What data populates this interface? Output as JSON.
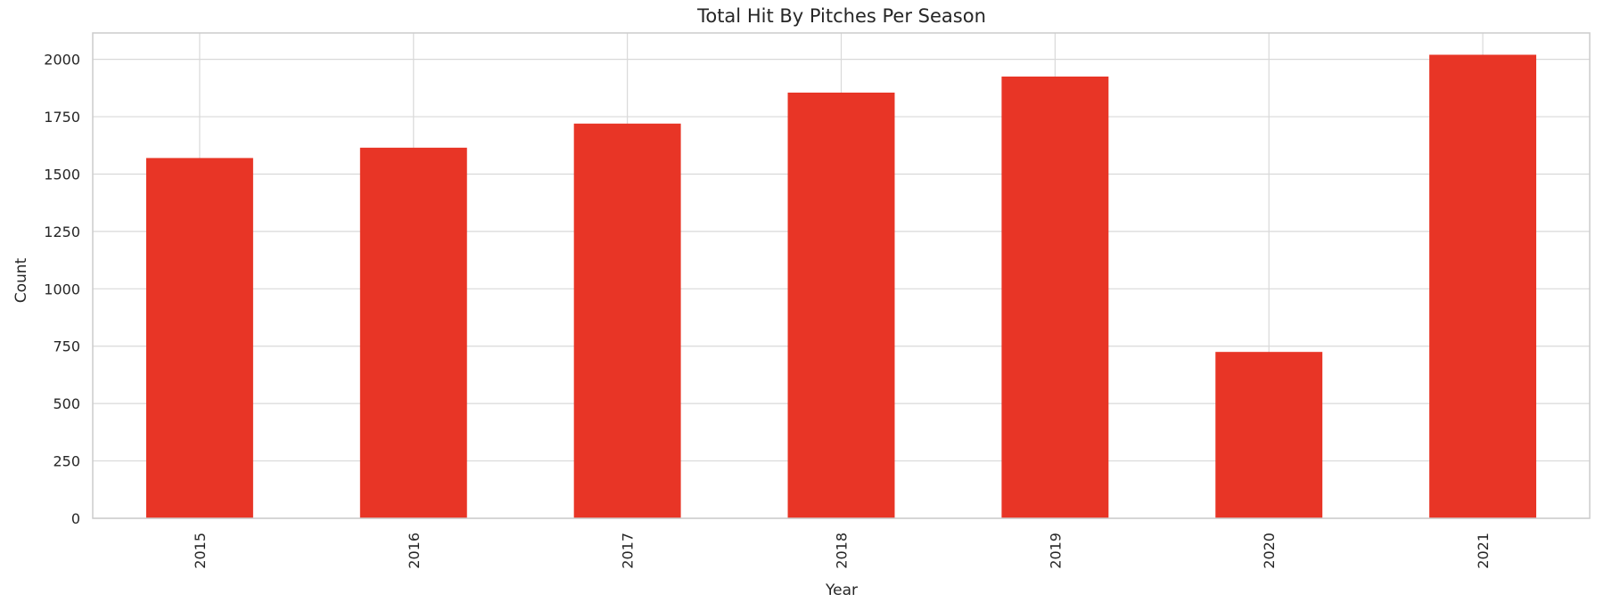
{
  "chart_data": {
    "type": "bar",
    "title": "Total Hit By Pitches Per Season",
    "xlabel": "Year",
    "ylabel": "Count",
    "categories": [
      "2015",
      "2016",
      "2017",
      "2018",
      "2019",
      "2020",
      "2021"
    ],
    "values": [
      1570,
      1615,
      1720,
      1855,
      1925,
      725,
      2020
    ],
    "ylim": [
      0,
      2115
    ],
    "yticks": [
      0,
      250,
      500,
      750,
      1000,
      1250,
      1500,
      1750,
      2000
    ],
    "grid": true,
    "x_tick_rotation": "vertical",
    "colors": {
      "bar": "#e83526",
      "grid": "#d9d9d9",
      "axes_edge": "#cccccc",
      "text": "#262626"
    }
  }
}
